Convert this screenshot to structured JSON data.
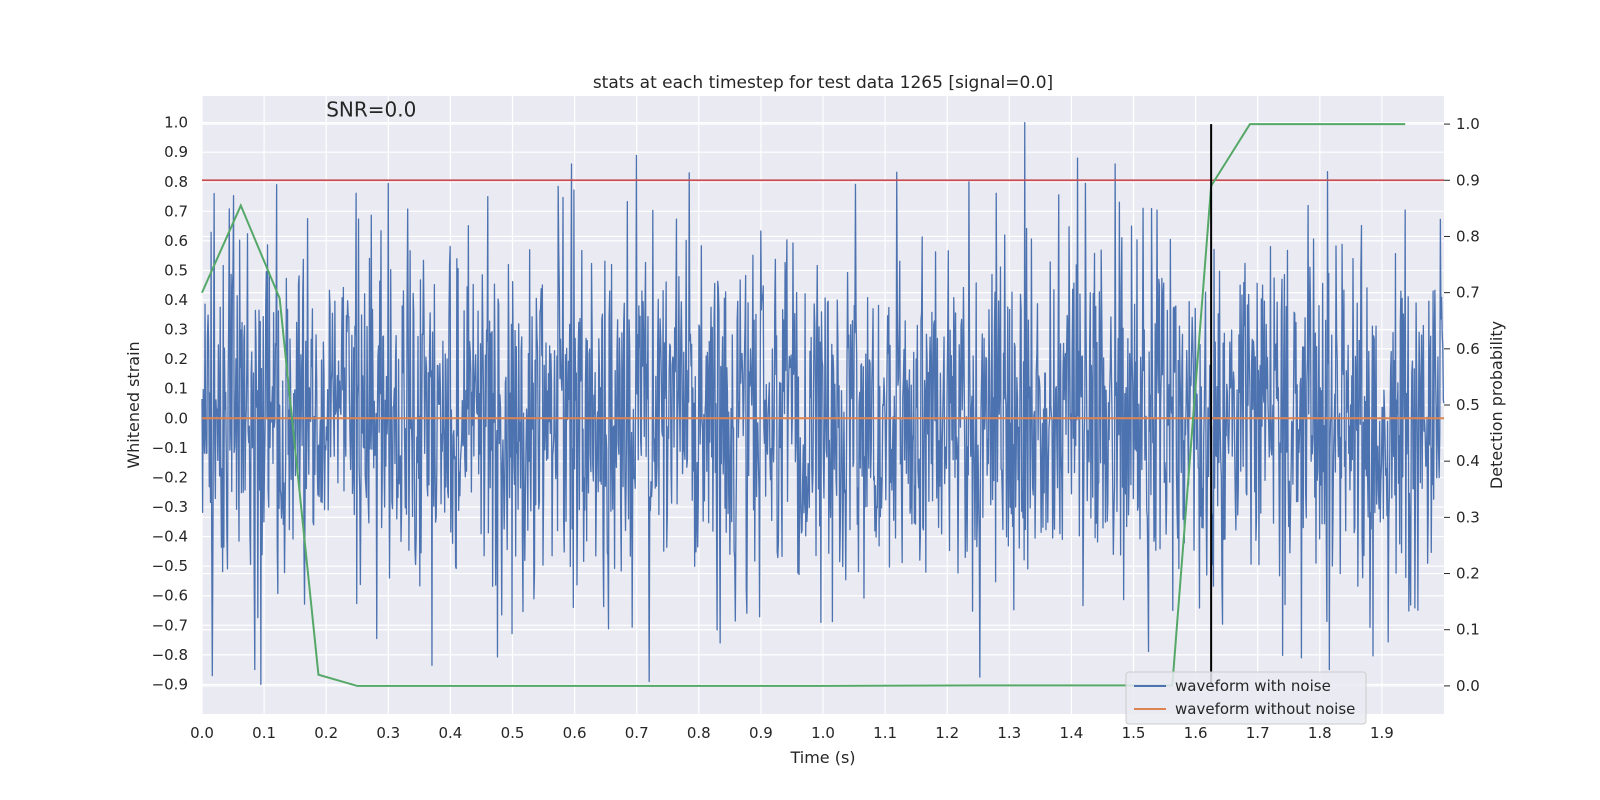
{
  "chart_data": {
    "type": "line",
    "title": "stats at each timestep for test data 1265 [signal=0.0]",
    "xlabel": "Time (s)",
    "ylabel": "Whitened strain",
    "y2label": "Detection probability",
    "xlim": [
      0.0,
      2.0
    ],
    "ylim": [
      -1.0,
      1.09
    ],
    "y2lim": [
      -0.05,
      1.05
    ],
    "x_ticks": [
      0.0,
      0.1,
      0.2,
      0.3,
      0.4,
      0.5,
      0.6,
      0.7,
      0.8,
      0.9,
      1.0,
      1.1,
      1.2,
      1.3,
      1.4,
      1.5,
      1.6,
      1.7,
      1.8,
      1.9
    ],
    "x_tick_labels": [
      "0.0",
      "0.1",
      "0.2",
      "0.3",
      "0.4",
      "0.5",
      "0.6",
      "0.7",
      "0.8",
      "0.9",
      "1.0",
      "1.1",
      "1.2",
      "1.3",
      "1.4",
      "1.5",
      "1.6",
      "1.7",
      "1.8",
      "1.9"
    ],
    "y_ticks": [
      -0.9,
      -0.8,
      -0.7,
      -0.6,
      -0.5,
      -0.4,
      -0.3,
      -0.2,
      -0.1,
      0.0,
      0.1,
      0.2,
      0.3,
      0.4,
      0.5,
      0.6,
      0.7,
      0.8,
      0.9,
      1.0
    ],
    "y_tick_labels": [
      "−0.9",
      "−0.8",
      "−0.7",
      "−0.6",
      "−0.5",
      "−0.4",
      "−0.3",
      "−0.2",
      "−0.1",
      "0.0",
      "0.1",
      "0.2",
      "0.3",
      "0.4",
      "0.5",
      "0.6",
      "0.7",
      "0.8",
      "0.9",
      "1.0"
    ],
    "y2_ticks": [
      0.0,
      0.1,
      0.2,
      0.3,
      0.4,
      0.5,
      0.6,
      0.7,
      0.8,
      0.9,
      1.0
    ],
    "y2_tick_labels": [
      "0.0",
      "0.1",
      "0.2",
      "0.3",
      "0.4",
      "0.5",
      "0.6",
      "0.7",
      "0.8",
      "0.9",
      "1.0"
    ],
    "annotation": "SNR=0.0",
    "annotation_at": [
      0.2,
      1.02
    ],
    "series": [
      {
        "name": "waveform with noise",
        "color": "#4c72b0",
        "axis": "left",
        "x_range": [
          0.0,
          2.0
        ],
        "n_points": 2048,
        "amplitude_range": [
          -0.9,
          1.0
        ],
        "noise_std": 0.3,
        "seed": 1265,
        "peaks": [
          [
            0.02,
            0.76
          ],
          [
            0.12,
            0.79
          ],
          [
            0.595,
            0.86
          ],
          [
            0.785,
            0.83
          ],
          [
            1.325,
            1.0
          ],
          [
            1.41,
            0.88
          ],
          [
            1.47,
            0.86
          ],
          [
            0.085,
            -0.85
          ],
          [
            0.72,
            -0.89
          ],
          [
            1.815,
            -0.85
          ],
          [
            1.77,
            -0.81
          ]
        ]
      },
      {
        "name": "waveform without noise",
        "color": "#dd8452",
        "axis": "left",
        "constant": 0.0
      },
      {
        "name": "detection probability",
        "color": "#55a868",
        "axis": "right",
        "x": [
          0.0,
          0.0625,
          0.125,
          0.1875,
          0.25,
          0.5,
          1.0,
          1.25,
          1.5,
          1.5625,
          1.625,
          1.6875,
          1.75,
          1.9375
        ],
        "values": [
          0.7,
          0.855,
          0.69,
          0.02,
          0.0,
          0.0,
          0.0,
          0.001,
          0.001,
          0.001,
          0.89,
          1.0,
          1.0,
          1.0
        ]
      }
    ],
    "threshold": {
      "y2": 0.9,
      "color": "#c44e52"
    },
    "marker_line": {
      "x": 1.625,
      "y2_range": [
        0.0,
        1.0
      ],
      "color": "#000000"
    },
    "legend": {
      "placement": "lower-right",
      "entries": [
        {
          "label": "waveform with noise",
          "color": "#4c72b0"
        },
        {
          "label": "waveform without noise",
          "color": "#dd8452"
        }
      ]
    },
    "colors": {
      "axes_bg": "#eaeaf2",
      "grid": "#ffffff",
      "text": "#262626"
    }
  }
}
